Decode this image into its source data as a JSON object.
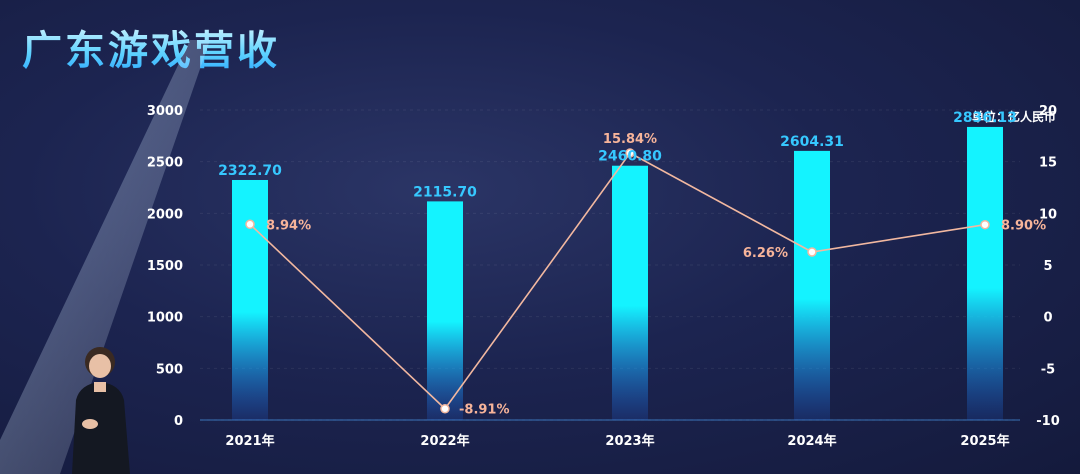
{
  "title": "广东游戏营收",
  "unit_label": "单位：亿人民币",
  "colors": {
    "bar_top": "#14f3ff",
    "bar_bottom": "#1f6fff",
    "bar_label": "#36c8ff",
    "line": "#f2b8a0",
    "pct_label": "#f7b49a",
    "axis_text": "#ffffff"
  },
  "chart_data": {
    "type": "bar",
    "title": "广东游戏营收",
    "categories": [
      "2021年",
      "2022年",
      "2023年",
      "2024年",
      "2025年"
    ],
    "series": [
      {
        "values": [
          2322.7,
          2115.7,
          2460.8,
          2604.31,
          2836.13
        ],
        "axis": "left",
        "kind": "bar"
      },
      {
        "values": [
          8.94,
          -8.91,
          15.84,
          6.26,
          8.9
        ],
        "axis": "right",
        "kind": "line"
      }
    ],
    "bar_labels": [
      "2322.70",
      "2115.70",
      "2460.80",
      "2604.31",
      "2836.13"
    ],
    "line_labels": [
      "8.94%",
      "-8.91%",
      "15.84%",
      "6.26%",
      "8.90%"
    ],
    "ylim": [
      0,
      3000
    ],
    "yticks": [
      0,
      500,
      1000,
      1500,
      2000,
      2500,
      3000
    ],
    "y2lim": [
      -10,
      20
    ],
    "y2ticks": [
      -10,
      -5,
      0,
      5,
      10,
      15,
      20
    ],
    "grid": true,
    "legend": "none"
  }
}
